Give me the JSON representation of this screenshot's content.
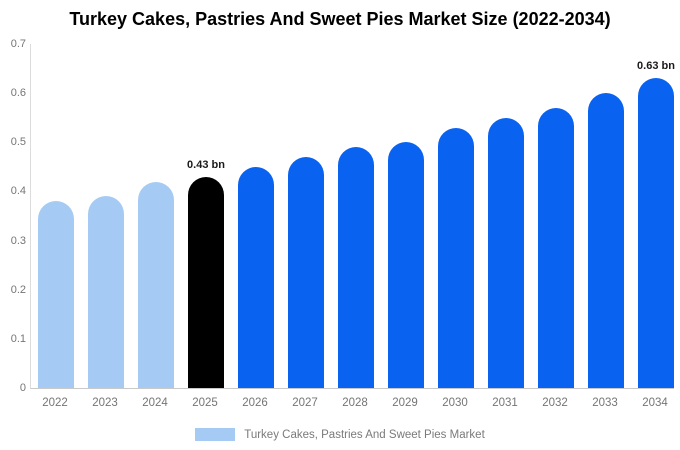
{
  "title": "Turkey Cakes, Pastries And Sweet Pies Market Size (2022-2034)",
  "legend": {
    "label": "Turkey Cakes, Pastries And Sweet Pies Market",
    "swatch_color": "#a5cbf5",
    "position": "bottom"
  },
  "colors": {
    "historical": "#a5cbf5",
    "base_year": "#000000",
    "forecast": "#0a63f0",
    "axis_text": "#757575",
    "value_label_text": "#1a1a1a",
    "background": "#ffffff"
  },
  "chart_data": {
    "type": "bar",
    "title": "Turkey Cakes, Pastries And Sweet Pies Market Size (2022-2034)",
    "xlabel": "",
    "ylabel": "",
    "unit": "bn",
    "categories": [
      "2022",
      "2023",
      "2024",
      "2025",
      "2026",
      "2027",
      "2028",
      "2029",
      "2030",
      "2031",
      "2032",
      "2033",
      "2034"
    ],
    "values": [
      0.38,
      0.39,
      0.42,
      0.43,
      0.45,
      0.47,
      0.49,
      0.5,
      0.53,
      0.55,
      0.57,
      0.6,
      0.63
    ],
    "bar_roles": [
      "historical",
      "historical",
      "historical",
      "base_year",
      "forecast",
      "forecast",
      "forecast",
      "forecast",
      "forecast",
      "forecast",
      "forecast",
      "forecast",
      "forecast"
    ],
    "point_labels": [
      "",
      "",
      "",
      "0.43 bn",
      "",
      "",
      "",
      "",
      "",
      "",
      "",
      "",
      "0.63 bn"
    ],
    "ylim": [
      0,
      0.7
    ],
    "yticks": [
      "0.7",
      "0.6",
      "0.5",
      "0.4",
      "0.3",
      "0.2",
      "0.1",
      "0"
    ],
    "grid": false,
    "legend_entries": [
      "Turkey Cakes, Pastries And Sweet Pies Market"
    ],
    "legend_position": "bottom"
  }
}
